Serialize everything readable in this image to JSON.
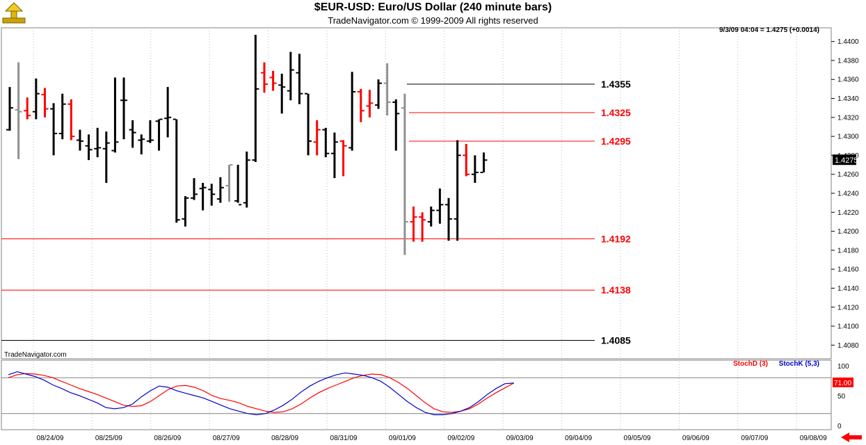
{
  "header": {
    "title": "$EUR-USD:  Euro/US Dollar  (240 minute bars)",
    "subtitle": "TradeNavigator.com © 1999-2009 All rights reserved"
  },
  "status_text": "9/3/09 04:04 = 1.4275 (+0.0014)",
  "watermark": "TradeNavigator.com",
  "colors": {
    "up": "#000000",
    "down": "#ff0000",
    "neutral": "#808080",
    "stochD": "#ff0000",
    "stochK": "#0000cc",
    "grid": "#c0c0c0"
  },
  "chart_data": [
    {
      "type": "bar",
      "series_name": "EUR-USD",
      "bar_interval": "240 minute",
      "ylim": [
        1.407,
        1.441
      ],
      "y_ticks": [
        "1.4400",
        "1.4380",
        "1.4360",
        "1.4340",
        "1.4320",
        "1.4300",
        "1.4280",
        "1.4260",
        "1.4240",
        "1.4220",
        "1.4200",
        "1.4180",
        "1.4160",
        "1.4140",
        "1.4120",
        "1.4100",
        "1.4080"
      ],
      "date_labels": [
        "08/24/09",
        "08/25/09",
        "08/26/09",
        "08/27/09",
        "08/28/09",
        "08/31/09",
        "09/01/09",
        "09/02/09",
        "09/03/09",
        "09/04/09",
        "09/05/09",
        "09/06/09",
        "09/07/09",
        "09/08/09"
      ],
      "last_price_label": "1.4275",
      "bars": [
        {
          "i": 0,
          "o": 1.4307,
          "h": 1.4352,
          "l": 1.4306,
          "c": 1.433,
          "col": "black"
        },
        {
          "i": 1,
          "o": 1.4328,
          "h": 1.4378,
          "l": 1.4276,
          "c": 1.4326,
          "col": "gray"
        },
        {
          "i": 2,
          "o": 1.4327,
          "h": 1.4341,
          "l": 1.4318,
          "c": 1.4322,
          "col": "red"
        },
        {
          "i": 3,
          "o": 1.4326,
          "h": 1.4361,
          "l": 1.4318,
          "c": 1.4345,
          "col": "black"
        },
        {
          "i": 4,
          "o": 1.4344,
          "h": 1.4351,
          "l": 1.432,
          "c": 1.4329,
          "col": "red"
        },
        {
          "i": 5,
          "o": 1.4329,
          "h": 1.4335,
          "l": 1.428,
          "c": 1.4303,
          "col": "black"
        },
        {
          "i": 6,
          "o": 1.4303,
          "h": 1.4345,
          "l": 1.4297,
          "c": 1.4334,
          "col": "black"
        },
        {
          "i": 7,
          "o": 1.4334,
          "h": 1.4339,
          "l": 1.4296,
          "c": 1.43,
          "col": "red"
        },
        {
          "i": 8,
          "o": 1.4296,
          "h": 1.4307,
          "l": 1.4285,
          "c": 1.4295,
          "col": "black"
        },
        {
          "i": 9,
          "o": 1.429,
          "h": 1.4302,
          "l": 1.4275,
          "c": 1.4286,
          "col": "black"
        },
        {
          "i": 10,
          "o": 1.4287,
          "h": 1.4309,
          "l": 1.4278,
          "c": 1.4288,
          "col": "black"
        },
        {
          "i": 11,
          "o": 1.4287,
          "h": 1.4305,
          "l": 1.4251,
          "c": 1.4293,
          "col": "black"
        },
        {
          "i": 12,
          "o": 1.4285,
          "h": 1.4362,
          "l": 1.4283,
          "c": 1.4294,
          "col": "black"
        },
        {
          "i": 13,
          "o": 1.4338,
          "h": 1.4362,
          "l": 1.4297,
          "c": 1.4338,
          "col": "black"
        },
        {
          "i": 14,
          "o": 1.4307,
          "h": 1.4317,
          "l": 1.4288,
          "c": 1.4304,
          "col": "black"
        },
        {
          "i": 15,
          "o": 1.4296,
          "h": 1.4302,
          "l": 1.4281,
          "c": 1.4297,
          "col": "black"
        },
        {
          "i": 16,
          "o": 1.4295,
          "h": 1.4317,
          "l": 1.4293,
          "c": 1.4296,
          "col": "black"
        },
        {
          "i": 17,
          "o": 1.4316,
          "h": 1.4318,
          "l": 1.4285,
          "c": 1.4318,
          "col": "black"
        },
        {
          "i": 18,
          "o": 1.4319,
          "h": 1.4352,
          "l": 1.4299,
          "c": 1.432,
          "col": "black"
        },
        {
          "i": 19,
          "o": 1.4318,
          "h": 1.4318,
          "l": 1.4209,
          "c": 1.4212,
          "col": "black"
        },
        {
          "i": 20,
          "o": 1.4213,
          "h": 1.4237,
          "l": 1.4205,
          "c": 1.4235,
          "col": "black"
        },
        {
          "i": 21,
          "o": 1.4235,
          "h": 1.4256,
          "l": 1.4233,
          "c": 1.4239,
          "col": "black"
        },
        {
          "i": 22,
          "o": 1.4245,
          "h": 1.4251,
          "l": 1.4222,
          "c": 1.4246,
          "col": "black"
        },
        {
          "i": 23,
          "o": 1.4244,
          "h": 1.425,
          "l": 1.4227,
          "c": 1.4239,
          "col": "black"
        },
        {
          "i": 24,
          "o": 1.4234,
          "h": 1.4257,
          "l": 1.423,
          "c": 1.4246,
          "col": "black"
        },
        {
          "i": 25,
          "o": 1.4248,
          "h": 1.427,
          "l": 1.4231,
          "c": 1.427,
          "col": "gray"
        },
        {
          "i": 26,
          "o": 1.4232,
          "h": 1.427,
          "l": 1.423,
          "c": 1.4228,
          "col": "black"
        },
        {
          "i": 27,
          "o": 1.423,
          "h": 1.4284,
          "l": 1.4225,
          "c": 1.4275,
          "col": "black"
        },
        {
          "i": 28,
          "o": 1.4275,
          "h": 1.4407,
          "l": 1.4273,
          "c": 1.435,
          "col": "black"
        },
        {
          "i": 29,
          "o": 1.4367,
          "h": 1.4378,
          "l": 1.4346,
          "c": 1.4355,
          "col": "red"
        },
        {
          "i": 30,
          "o": 1.4362,
          "h": 1.4369,
          "l": 1.4348,
          "c": 1.4356,
          "col": "red"
        },
        {
          "i": 31,
          "o": 1.4354,
          "h": 1.4366,
          "l": 1.4324,
          "c": 1.4352,
          "col": "black"
        },
        {
          "i": 32,
          "o": 1.4348,
          "h": 1.4389,
          "l": 1.4338,
          "c": 1.437,
          "col": "black"
        },
        {
          "i": 33,
          "o": 1.4367,
          "h": 1.4387,
          "l": 1.4334,
          "c": 1.4345,
          "col": "black"
        },
        {
          "i": 34,
          "o": 1.4345,
          "h": 1.4345,
          "l": 1.428,
          "c": 1.4295,
          "col": "black"
        },
        {
          "i": 35,
          "o": 1.4294,
          "h": 1.4317,
          "l": 1.428,
          "c": 1.4307,
          "col": "red"
        },
        {
          "i": 36,
          "o": 1.4307,
          "h": 1.4309,
          "l": 1.4278,
          "c": 1.4282,
          "col": "black"
        },
        {
          "i": 37,
          "o": 1.4282,
          "h": 1.4304,
          "l": 1.4256,
          "c": 1.4294,
          "col": "black"
        },
        {
          "i": 38,
          "o": 1.4295,
          "h": 1.4296,
          "l": 1.4258,
          "c": 1.429,
          "col": "red"
        },
        {
          "i": 39,
          "o": 1.4288,
          "h": 1.4368,
          "l": 1.4285,
          "c": 1.4347,
          "col": "black"
        },
        {
          "i": 40,
          "o": 1.4347,
          "h": 1.435,
          "l": 1.4315,
          "c": 1.4327,
          "col": "red"
        },
        {
          "i": 41,
          "o": 1.4332,
          "h": 1.4349,
          "l": 1.432,
          "c": 1.4335,
          "col": "red"
        },
        {
          "i": 42,
          "o": 1.4333,
          "h": 1.436,
          "l": 1.4329,
          "c": 1.4356,
          "col": "black"
        },
        {
          "i": 43,
          "o": 1.4356,
          "h": 1.4377,
          "l": 1.4322,
          "c": 1.4336,
          "col": "gray"
        },
        {
          "i": 44,
          "o": 1.4336,
          "h": 1.4339,
          "l": 1.4285,
          "c": 1.4324,
          "col": "black"
        },
        {
          "i": 45,
          "o": 1.433,
          "h": 1.4345,
          "l": 1.4175,
          "c": 1.421,
          "col": "gray"
        },
        {
          "i": 46,
          "o": 1.421,
          "h": 1.4226,
          "l": 1.4189,
          "c": 1.4215,
          "col": "red"
        },
        {
          "i": 47,
          "o": 1.4215,
          "h": 1.422,
          "l": 1.4189,
          "c": 1.4212,
          "col": "red"
        },
        {
          "i": 48,
          "o": 1.421,
          "h": 1.4226,
          "l": 1.4205,
          "c": 1.4222,
          "col": "black"
        },
        {
          "i": 49,
          "o": 1.4222,
          "h": 1.4245,
          "l": 1.4208,
          "c": 1.4228,
          "col": "black"
        },
        {
          "i": 50,
          "o": 1.4228,
          "h": 1.4235,
          "l": 1.419,
          "c": 1.4213,
          "col": "black"
        },
        {
          "i": 51,
          "o": 1.4213,
          "h": 1.4296,
          "l": 1.419,
          "c": 1.428,
          "col": "black"
        },
        {
          "i": 52,
          "o": 1.428,
          "h": 1.4292,
          "l": 1.4258,
          "c": 1.426,
          "col": "red"
        },
        {
          "i": 53,
          "o": 1.426,
          "h": 1.428,
          "l": 1.4251,
          "c": 1.4262,
          "col": "black"
        },
        {
          "i": 54,
          "o": 1.4262,
          "h": 1.4283,
          "l": 1.4262,
          "c": 1.4275,
          "col": "black"
        }
      ]
    },
    {
      "type": "line",
      "levels": [
        {
          "value": 1.4355,
          "label": "1.4355",
          "color": "black"
        },
        {
          "value": 1.4325,
          "label": "1.4325",
          "color": "red"
        },
        {
          "value": 1.4295,
          "label": "1.4295",
          "color": "red"
        },
        {
          "value": 1.4192,
          "label": "1.4192",
          "color": "red"
        },
        {
          "value": 1.4138,
          "label": "1.4138",
          "color": "red"
        },
        {
          "value": 1.4085,
          "label": "1.4085",
          "color": "black"
        }
      ]
    },
    {
      "type": "line",
      "indicator": "stochastic",
      "ylim": [
        0,
        100
      ],
      "y_ticks": [
        "100",
        "50",
        "0"
      ],
      "legend": [
        "StochD (3)",
        "StochK (5,3)"
      ],
      "last_value_label": "71.00",
      "series": [
        {
          "name": "StochD (3)",
          "color": "red",
          "values": [
            80,
            85,
            87,
            86,
            84,
            80,
            74,
            68,
            62,
            57,
            52,
            46,
            40,
            34,
            32,
            33,
            40,
            50,
            60,
            66,
            67,
            64,
            58,
            50,
            45,
            42,
            38,
            32,
            28,
            24,
            22,
            23,
            28,
            36,
            46,
            55,
            62,
            68,
            74,
            80,
            84,
            86,
            85,
            80,
            72,
            62,
            50,
            38,
            28,
            23,
            22,
            24,
            28,
            36,
            46,
            55,
            63,
            71
          ]
        },
        {
          "name": "StochK (5,3)",
          "color": "blue",
          "values": [
            85,
            90,
            86,
            82,
            76,
            68,
            62,
            55,
            50,
            44,
            38,
            30,
            28,
            30,
            36,
            48,
            58,
            66,
            64,
            58,
            54,
            50,
            46,
            40,
            34,
            28,
            24,
            20,
            18,
            20,
            26,
            34,
            44,
            56,
            66,
            74,
            80,
            85,
            88,
            86,
            84,
            80,
            74,
            64,
            52,
            40,
            30,
            22,
            18,
            18,
            20,
            24,
            30,
            40,
            52,
            62,
            70,
            71
          ]
        }
      ]
    }
  ]
}
